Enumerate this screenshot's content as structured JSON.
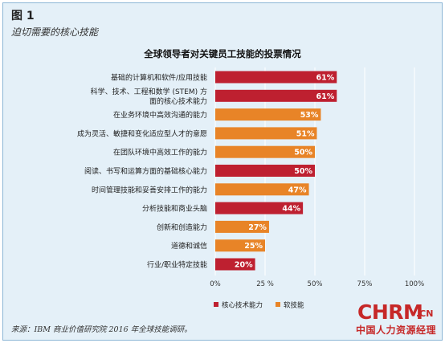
{
  "figure": {
    "label": "图 1",
    "subtitle": "迫切需要的核心技能",
    "source": "来源：IBM 商业价值研究院 2016 年全球技能调研。"
  },
  "logo": {
    "main": "CHRM",
    "suffix": ".CN",
    "chinese": "中国人力资源经理"
  },
  "colors": {
    "core": "#be2030",
    "soft": "#e88427",
    "background": "#e4f0f8",
    "grid": "#ffffff"
  },
  "chart_data": {
    "type": "bar",
    "orientation": "horizontal",
    "title": "全球领导者对关键员工技能的投票情况",
    "categories": [
      "基础的计算机和软件/应用技能",
      "科学、技术、工程和数学（STEM）方面的核心技术能力",
      "在业务环境中高效沟通的能力",
      "成为灵活、敏捷和变化适应型人才的意愿",
      "在团队环境中高效工作的能力",
      "阅读、书写和运算方面的基础核心能力",
      "时间管理技能和妥善安排工作的能力",
      "分析技能和商业头脑",
      "创新和创造能力",
      "道德和诚信",
      "行业/职业特定技能"
    ],
    "category_lines": [
      [
        "基础的计算机和软件/应用技能"
      ],
      [
        "科学、技术、工程和数学 (STEM) 方",
        "面的核心技术能力"
      ],
      [
        "在业务环境中高效沟通的能力"
      ],
      [
        "成为灵活、敏捷和变化适应型人才的意愿"
      ],
      [
        "在团队环境中高效工作的能力"
      ],
      [
        "阅读、书写和运算方面的基础核心能力"
      ],
      [
        "时间管理技能和妥善安排工作的能力"
      ],
      [
        "分析技能和商业头脑"
      ],
      [
        "创新和创造能力"
      ],
      [
        "道德和诚信"
      ],
      [
        "行业/职业特定技能"
      ]
    ],
    "values": [
      61,
      61,
      53,
      51,
      50,
      50,
      47,
      44,
      27,
      25,
      20
    ],
    "value_labels": [
      "61%",
      "61%",
      "53%",
      "51%",
      "50%",
      "50%",
      "47%",
      "44%",
      "27%",
      "25%",
      "20%"
    ],
    "groups": [
      "core",
      "core",
      "soft",
      "soft",
      "soft",
      "core",
      "soft",
      "core",
      "soft",
      "soft",
      "core"
    ],
    "series": [
      {
        "key": "core",
        "name": "核心技术能力"
      },
      {
        "key": "soft",
        "name": "软技能"
      }
    ],
    "xlim": [
      0,
      100
    ],
    "xticks": [
      0,
      25,
      50,
      75,
      100
    ],
    "xtick_labels": [
      "0%",
      "25 %",
      "50%",
      "75%",
      "100%"
    ],
    "grid": true,
    "legend_position": "bottom-left"
  }
}
